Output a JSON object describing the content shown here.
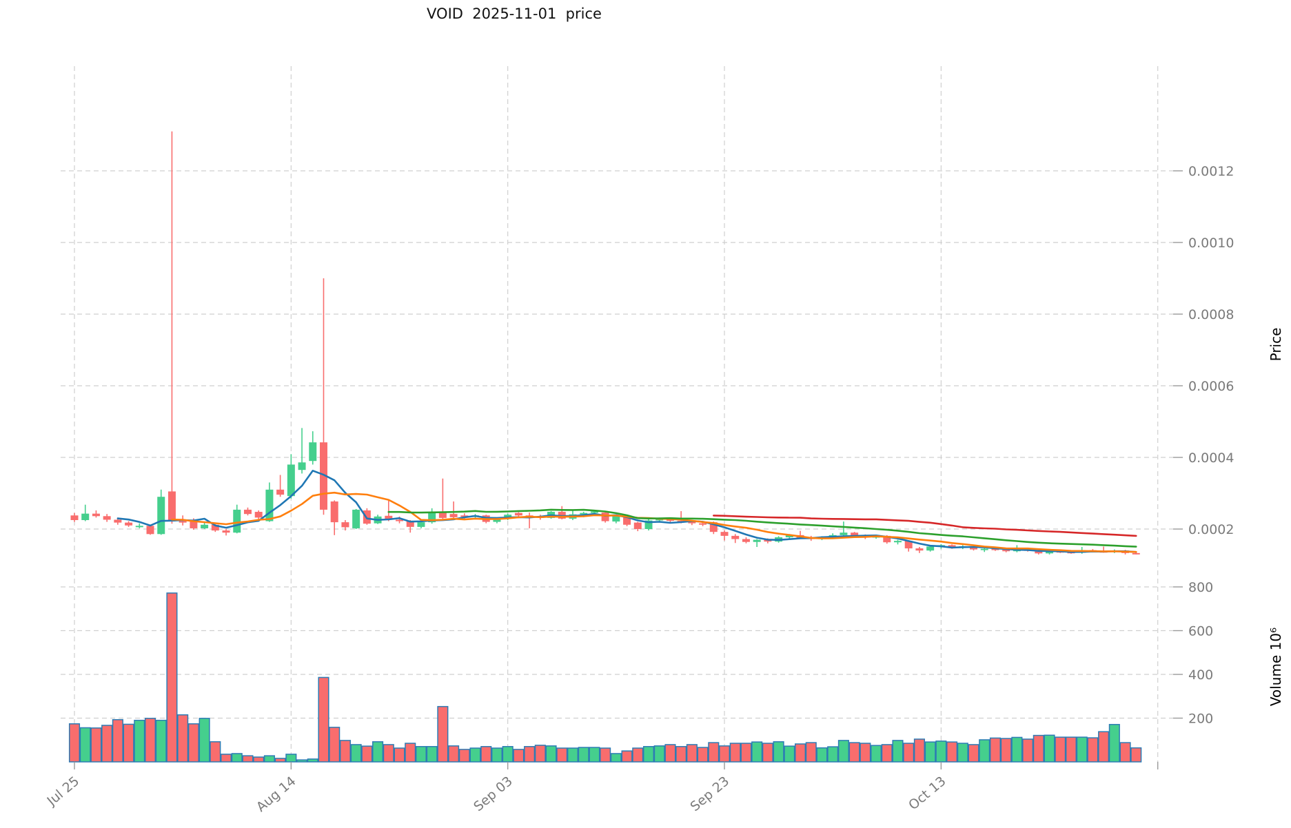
{
  "colors": {
    "up": "#45cf8d",
    "down": "#f96d6d",
    "volume_edge": "#2d7cb5",
    "grid": "#cfcfcf",
    "tick_mark": "#9a9a9a",
    "tick_text": "#7a7a7a",
    "axis_label_text": "#000000",
    "ma": [
      "#1f77b4",
      "#ff7f0e",
      "#2ca02c",
      "#d62728"
    ]
  },
  "chart_data": {
    "type": "candlestick",
    "title": "VOID  2025-11-01  price",
    "symbol": "VOID",
    "as_of_date": "2025-11-01",
    "legend": "none",
    "grid": "dashed",
    "price_scale": 1e-06,
    "price_axis": {
      "label": "Price",
      "ticks": [
        0.0002,
        0.0004,
        0.0006,
        0.0008,
        0.001,
        0.0012
      ],
      "range": [
        8e-05,
        0.0015
      ]
    },
    "volume_axis": {
      "label": "Volume 10⁶",
      "unit": "millions",
      "ticks": [
        200,
        400,
        600,
        800
      ],
      "range": [
        0,
        838
      ]
    },
    "x_ticks": [
      {
        "label": "Jul 25",
        "day_index": 0
      },
      {
        "label": "Aug 14",
        "day_index": 20
      },
      {
        "label": "Sep 03",
        "day_index": 40
      },
      {
        "label": "Sep 23",
        "day_index": 60
      },
      {
        "label": "Oct 13",
        "day_index": 80
      },
      {
        "label": "",
        "day_index": 100
      }
    ],
    "moving_averages": [
      {
        "window": 5,
        "color": "#1f77b4"
      },
      {
        "window": 10,
        "color": "#ff7f0e"
      },
      {
        "window": 30,
        "color": "#2ca02c"
      },
      {
        "window": 60,
        "color": "#d62728"
      }
    ],
    "dates": [
      "07-25",
      "07-26",
      "07-27",
      "07-28",
      "07-29",
      "07-30",
      "07-31",
      "08-01",
      "08-02",
      "08-03",
      "08-04",
      "08-05",
      "08-06",
      "08-07",
      "08-08",
      "08-09",
      "08-10",
      "08-11",
      "08-12",
      "08-13",
      "08-14",
      "08-15",
      "08-16",
      "08-17",
      "08-18",
      "08-19",
      "08-20",
      "08-21",
      "08-22",
      "08-23",
      "08-24",
      "08-25",
      "08-26",
      "08-27",
      "08-28",
      "08-29",
      "08-30",
      "08-31",
      "09-01",
      "09-02",
      "09-03",
      "09-04",
      "09-05",
      "09-06",
      "09-07",
      "09-08",
      "09-09",
      "09-10",
      "09-11",
      "09-12",
      "09-13",
      "09-14",
      "09-15",
      "09-16",
      "09-17",
      "09-18",
      "09-19",
      "09-20",
      "09-21",
      "09-22",
      "09-23",
      "09-24",
      "09-25",
      "09-26",
      "09-27",
      "09-28",
      "09-29",
      "09-30",
      "10-01",
      "10-02",
      "10-03",
      "10-04",
      "10-05",
      "10-06",
      "10-07",
      "10-08",
      "10-09",
      "10-10",
      "10-11",
      "10-12",
      "10-13",
      "10-14",
      "10-15",
      "10-16",
      "10-17",
      "10-18",
      "10-19",
      "10-20",
      "10-21",
      "10-22",
      "10-23",
      "10-24",
      "10-25",
      "10-26",
      "10-27",
      "10-28",
      "10-29",
      "10-30",
      "10-31"
    ],
    "open": [
      238,
      225,
      243,
      236,
      226,
      218,
      208,
      209,
      186,
      305,
      222,
      224,
      202,
      212,
      196,
      190,
      254,
      248,
      222,
      310,
      292,
      365,
      390,
      442,
      277,
      219,
      202,
      252,
      216,
      237,
      226,
      222,
      206,
      219,
      246,
      242,
      238,
      235,
      238,
      220,
      229,
      245,
      238,
      235,
      231,
      248,
      229,
      241,
      245,
      246,
      221,
      237,
      218,
      200,
      224,
      228,
      223,
      221,
      216,
      219,
      192,
      181,
      172,
      164,
      170,
      165,
      177,
      183,
      176,
      172,
      178,
      183,
      190,
      181,
      176,
      181,
      163,
      167,
      146,
      140,
      151,
      155,
      149,
      152,
      143,
      145,
      142,
      138,
      143,
      140,
      132,
      138,
      136,
      134,
      141,
      138,
      137,
      140,
      133
    ],
    "high": [
      245,
      268,
      252,
      242,
      232,
      222,
      216,
      211,
      310,
      1310,
      238,
      230,
      218,
      214,
      200,
      268,
      260,
      252,
      330,
      351,
      409,
      482,
      473,
      900,
      280,
      225,
      256,
      258,
      240,
      283,
      235,
      225,
      222,
      258,
      341,
      277,
      244,
      242,
      240,
      232,
      243,
      247,
      246,
      240,
      250,
      264,
      254,
      248,
      252,
      248,
      240,
      239,
      220,
      228,
      232,
      230,
      250,
      225,
      222,
      221,
      196,
      186,
      177,
      172,
      174,
      180,
      186,
      195,
      181,
      180,
      188,
      221,
      192,
      185,
      184,
      183,
      170,
      169,
      150,
      154,
      158,
      157,
      155,
      154,
      152,
      148,
      145,
      155,
      146,
      142,
      140,
      141,
      139,
      150,
      144,
      151,
      143,
      142,
      138
    ],
    "low": [
      220,
      222,
      232,
      220,
      212,
      206,
      202,
      184,
      184,
      215,
      210,
      198,
      200,
      192,
      182,
      188,
      238,
      228,
      220,
      290,
      285,
      355,
      380,
      240,
      183,
      196,
      200,
      212,
      214,
      222,
      216,
      190,
      202,
      215,
      228,
      226,
      228,
      228,
      216,
      216,
      225,
      234,
      202,
      226,
      229,
      227,
      225,
      233,
      238,
      218,
      216,
      208,
      194,
      196,
      218,
      218,
      216,
      211,
      208,
      186,
      168,
      161,
      160,
      150,
      160,
      162,
      174,
      172,
      167,
      169,
      173,
      179,
      177,
      172,
      173,
      159,
      157,
      137,
      133,
      137,
      145,
      145,
      144,
      140,
      136,
      139,
      135,
      135,
      137,
      129,
      129,
      133,
      131,
      131,
      135,
      134,
      133,
      129,
      129
    ],
    "close": [
      225,
      243,
      236,
      226,
      218,
      210,
      209,
      186,
      290,
      222,
      218,
      202,
      212,
      196,
      190,
      254,
      242,
      232,
      310,
      296,
      380,
      386,
      442,
      254,
      219,
      205,
      254,
      215,
      235,
      226,
      222,
      206,
      219,
      246,
      231,
      233,
      235,
      238,
      220,
      229,
      240,
      238,
      235,
      231,
      248,
      229,
      241,
      245,
      249,
      222,
      237,
      212,
      200,
      224,
      228,
      223,
      221,
      216,
      214,
      192,
      181,
      172,
      164,
      170,
      165,
      177,
      183,
      176,
      172,
      178,
      183,
      190,
      181,
      176,
      181,
      163,
      167,
      146,
      140,
      151,
      155,
      149,
      152,
      143,
      145,
      142,
      138,
      143,
      140,
      132,
      138,
      136,
      134,
      141,
      138,
      137,
      140,
      133,
      132
    ],
    "volume_m": [
      174,
      156,
      155,
      167,
      193,
      172,
      190,
      199,
      190,
      772,
      215,
      174,
      199,
      92,
      35,
      38,
      28,
      22,
      28,
      16,
      35,
      9,
      13,
      386,
      158,
      98,
      79,
      72,
      92,
      79,
      63,
      85,
      70,
      70,
      253,
      73,
      57,
      63,
      70,
      63,
      70,
      57,
      70,
      76,
      73,
      63,
      63,
      66,
      66,
      63,
      38,
      50,
      63,
      70,
      73,
      79,
      70,
      79,
      66,
      88,
      73,
      85,
      85,
      91,
      85,
      92,
      72,
      82,
      88,
      64,
      69,
      98,
      88,
      85,
      75,
      79,
      98,
      85,
      104,
      91,
      95,
      91,
      85,
      79,
      101,
      109,
      107,
      112,
      104,
      121,
      122,
      113,
      113,
      113,
      110,
      138,
      171,
      88,
      64
    ]
  }
}
